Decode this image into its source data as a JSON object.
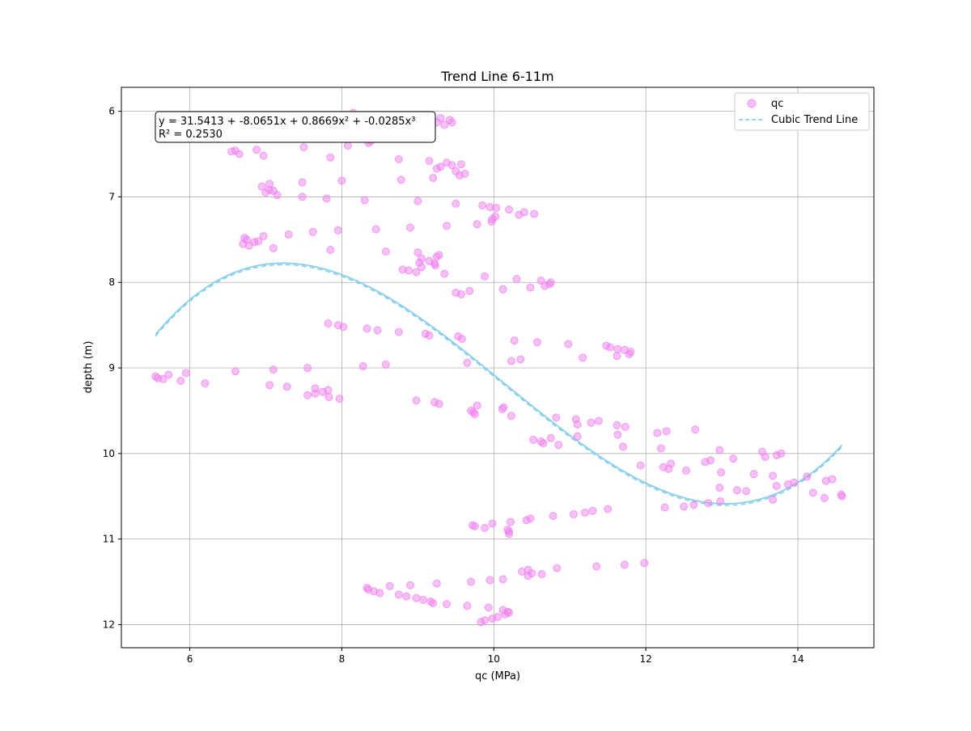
{
  "chart_data": {
    "type": "scatter",
    "title": "Trend Line 6-11m",
    "xlabel": "qc (MPa)",
    "ylabel": "depth (m)",
    "xlim": [
      5.1,
      15.0
    ],
    "ylim": [
      12.27,
      5.72
    ],
    "y_inverted": true,
    "grid": true,
    "legend_position": "top-right",
    "x_ticks": [
      6,
      8,
      10,
      12,
      14
    ],
    "y_ticks": [
      6,
      7,
      8,
      9,
      10,
      11,
      12
    ],
    "x_tick_labels": [
      "6",
      "8",
      "10",
      "12",
      "14"
    ],
    "y_tick_labels": [
      "6",
      "7",
      "8",
      "9",
      "10",
      "11",
      "12"
    ],
    "annotation": {
      "line1": "y = 31.5413 + -8.0651x + 0.8669x² + -0.0285x³",
      "line2": "R² = 0.2530"
    },
    "series": [
      {
        "name": "qc",
        "kind": "scatter",
        "color": "#ee82ee",
        "points": [
          [
            8.15,
            6.02
          ],
          [
            8.35,
            6.37
          ],
          [
            8.38,
            6.35
          ],
          [
            8.45,
            6.3
          ],
          [
            8.6,
            6.27
          ],
          [
            8.7,
            6.26
          ],
          [
            8.8,
            6.23
          ],
          [
            8.95,
            6.22
          ],
          [
            9.1,
            6.2
          ],
          [
            9.15,
            6.16
          ],
          [
            9.25,
            6.13
          ],
          [
            9.3,
            6.08
          ],
          [
            9.35,
            6.16
          ],
          [
            9.42,
            6.1
          ],
          [
            9.45,
            6.13
          ],
          [
            8.08,
            6.4
          ],
          [
            6.55,
            6.47
          ],
          [
            6.6,
            6.46
          ],
          [
            6.65,
            6.5
          ],
          [
            6.88,
            6.45
          ],
          [
            6.97,
            6.52
          ],
          [
            7.5,
            6.42
          ],
          [
            7.85,
            6.54
          ],
          [
            8.75,
            6.56
          ],
          [
            9.15,
            6.58
          ],
          [
            9.25,
            6.67
          ],
          [
            9.3,
            6.65
          ],
          [
            9.38,
            6.6
          ],
          [
            9.45,
            6.63
          ],
          [
            9.5,
            6.7
          ],
          [
            9.55,
            6.75
          ],
          [
            9.57,
            6.62
          ],
          [
            9.62,
            6.73
          ],
          [
            9.2,
            6.78
          ],
          [
            8.78,
            6.8
          ],
          [
            8.0,
            6.81
          ],
          [
            7.48,
            6.83
          ],
          [
            7.05,
            6.85
          ],
          [
            6.95,
            6.88
          ],
          [
            7.0,
            6.95
          ],
          [
            7.05,
            6.92
          ],
          [
            7.1,
            6.93
          ],
          [
            7.15,
            6.98
          ],
          [
            7.48,
            7.0
          ],
          [
            7.8,
            7.02
          ],
          [
            8.3,
            7.04
          ],
          [
            9.0,
            7.05
          ],
          [
            9.5,
            7.08
          ],
          [
            9.85,
            7.1
          ],
          [
            9.95,
            7.12
          ],
          [
            10.03,
            7.13
          ],
          [
            10.2,
            7.15
          ],
          [
            10.33,
            7.21
          ],
          [
            10.4,
            7.18
          ],
          [
            10.53,
            7.2
          ],
          [
            10.02,
            7.23
          ],
          [
            9.98,
            7.26
          ],
          [
            9.97,
            7.29
          ],
          [
            9.78,
            7.32
          ],
          [
            9.38,
            7.34
          ],
          [
            8.9,
            7.36
          ],
          [
            8.45,
            7.38
          ],
          [
            7.95,
            7.39
          ],
          [
            7.62,
            7.41
          ],
          [
            7.3,
            7.44
          ],
          [
            6.97,
            7.46
          ],
          [
            6.72,
            7.48
          ],
          [
            6.75,
            7.5
          ],
          [
            6.9,
            7.52
          ],
          [
            6.85,
            7.53
          ],
          [
            6.7,
            7.55
          ],
          [
            6.78,
            7.57
          ],
          [
            7.1,
            7.6
          ],
          [
            7.85,
            7.62
          ],
          [
            8.58,
            7.64
          ],
          [
            9.0,
            7.65
          ],
          [
            9.28,
            7.68
          ],
          [
            9.25,
            7.7
          ],
          [
            9.05,
            7.72
          ],
          [
            9.15,
            7.75
          ],
          [
            9.02,
            7.77
          ],
          [
            9.22,
            7.78
          ],
          [
            9.23,
            7.8
          ],
          [
            9.05,
            7.82
          ],
          [
            8.8,
            7.85
          ],
          [
            8.88,
            7.86
          ],
          [
            8.98,
            7.88
          ],
          [
            9.35,
            7.9
          ],
          [
            9.88,
            7.93
          ],
          [
            10.3,
            7.96
          ],
          [
            10.62,
            7.98
          ],
          [
            10.75,
            8.0
          ],
          [
            10.73,
            8.02
          ],
          [
            10.67,
            8.04
          ],
          [
            10.48,
            8.06
          ],
          [
            10.12,
            8.08
          ],
          [
            9.68,
            8.1
          ],
          [
            9.5,
            8.12
          ],
          [
            9.57,
            8.14
          ],
          [
            7.82,
            8.48
          ],
          [
            7.95,
            8.5
          ],
          [
            8.02,
            8.52
          ],
          [
            8.33,
            8.54
          ],
          [
            8.47,
            8.56
          ],
          [
            8.75,
            8.58
          ],
          [
            9.1,
            8.6
          ],
          [
            9.15,
            8.62
          ],
          [
            9.53,
            8.63
          ],
          [
            9.58,
            8.66
          ],
          [
            10.27,
            8.68
          ],
          [
            10.57,
            8.7
          ],
          [
            10.98,
            8.72
          ],
          [
            11.48,
            8.74
          ],
          [
            11.53,
            8.76
          ],
          [
            11.63,
            8.78
          ],
          [
            11.72,
            8.79
          ],
          [
            11.8,
            8.81
          ],
          [
            11.78,
            8.84
          ],
          [
            11.62,
            8.86
          ],
          [
            11.17,
            8.88
          ],
          [
            10.35,
            8.9
          ],
          [
            10.23,
            8.92
          ],
          [
            9.65,
            8.94
          ],
          [
            8.58,
            8.96
          ],
          [
            8.28,
            8.98
          ],
          [
            7.55,
            9.0
          ],
          [
            7.1,
            9.02
          ],
          [
            6.6,
            9.04
          ],
          [
            5.95,
            9.06
          ],
          [
            5.72,
            9.08
          ],
          [
            5.55,
            9.1
          ],
          [
            5.58,
            9.12
          ],
          [
            5.65,
            9.13
          ],
          [
            5.88,
            9.15
          ],
          [
            6.2,
            9.18
          ],
          [
            7.05,
            9.2
          ],
          [
            7.28,
            9.22
          ],
          [
            7.65,
            9.24
          ],
          [
            7.82,
            9.26
          ],
          [
            7.75,
            9.28
          ],
          [
            7.65,
            9.3
          ],
          [
            7.55,
            9.32
          ],
          [
            7.83,
            9.34
          ],
          [
            7.97,
            9.36
          ],
          [
            8.98,
            9.38
          ],
          [
            9.22,
            9.4
          ],
          [
            9.28,
            9.42
          ],
          [
            9.78,
            9.44
          ],
          [
            10.13,
            9.46
          ],
          [
            10.11,
            9.48
          ],
          [
            9.7,
            9.5
          ],
          [
            9.73,
            9.52
          ],
          [
            9.75,
            9.54
          ],
          [
            10.23,
            9.56
          ],
          [
            10.82,
            9.58
          ],
          [
            11.08,
            9.6
          ],
          [
            11.38,
            9.62
          ],
          [
            11.28,
            9.64
          ],
          [
            11.1,
            9.66
          ],
          [
            11.62,
            9.67
          ],
          [
            11.73,
            9.69
          ],
          [
            12.65,
            9.72
          ],
          [
            12.27,
            9.74
          ],
          [
            12.15,
            9.76
          ],
          [
            11.63,
            9.78
          ],
          [
            11.1,
            9.8
          ],
          [
            10.75,
            9.82
          ],
          [
            10.52,
            9.84
          ],
          [
            10.62,
            9.86
          ],
          [
            10.65,
            9.88
          ],
          [
            10.85,
            9.9
          ],
          [
            11.7,
            9.92
          ],
          [
            12.2,
            9.94
          ],
          [
            12.97,
            9.96
          ],
          [
            13.53,
            9.98
          ],
          [
            13.78,
            10.0
          ],
          [
            13.72,
            10.02
          ],
          [
            13.57,
            10.04
          ],
          [
            13.15,
            10.06
          ],
          [
            12.85,
            10.08
          ],
          [
            12.78,
            10.1
          ],
          [
            12.33,
            10.12
          ],
          [
            11.93,
            10.14
          ],
          [
            12.23,
            10.16
          ],
          [
            12.3,
            10.18
          ],
          [
            12.53,
            10.2
          ],
          [
            12.99,
            10.22
          ],
          [
            13.42,
            10.24
          ],
          [
            14.12,
            10.27
          ],
          [
            13.67,
            10.26
          ],
          [
            14.45,
            10.3
          ],
          [
            14.37,
            10.32
          ],
          [
            13.95,
            10.34
          ],
          [
            13.87,
            10.36
          ],
          [
            13.72,
            10.38
          ],
          [
            12.97,
            10.4
          ],
          [
            13.2,
            10.43
          ],
          [
            13.32,
            10.44
          ],
          [
            14.2,
            10.46
          ],
          [
            14.57,
            10.48
          ],
          [
            14.58,
            10.5
          ],
          [
            14.35,
            10.52
          ],
          [
            13.67,
            10.54
          ],
          [
            12.98,
            10.56
          ],
          [
            12.82,
            10.58
          ],
          [
            12.63,
            10.6
          ],
          [
            12.5,
            10.62
          ],
          [
            12.25,
            10.63
          ],
          [
            11.5,
            10.65
          ],
          [
            11.3,
            10.67
          ],
          [
            11.2,
            10.69
          ],
          [
            11.05,
            10.71
          ],
          [
            10.78,
            10.73
          ],
          [
            10.48,
            10.76
          ],
          [
            10.43,
            10.78
          ],
          [
            10.22,
            10.8
          ],
          [
            9.98,
            10.82
          ],
          [
            9.72,
            10.84
          ],
          [
            9.75,
            10.85
          ],
          [
            9.88,
            10.87
          ],
          [
            10.18,
            10.89
          ],
          [
            10.2,
            10.91
          ],
          [
            10.2,
            10.94
          ],
          [
            11.98,
            11.28
          ],
          [
            11.72,
            11.3
          ],
          [
            11.35,
            11.32
          ],
          [
            10.83,
            11.34
          ],
          [
            10.45,
            11.36
          ],
          [
            10.37,
            11.38
          ],
          [
            10.5,
            11.4
          ],
          [
            10.63,
            11.41
          ],
          [
            10.45,
            11.43
          ],
          [
            10.12,
            11.47
          ],
          [
            9.95,
            11.48
          ],
          [
            9.7,
            11.5
          ],
          [
            9.25,
            11.52
          ],
          [
            8.63,
            11.55
          ],
          [
            8.9,
            11.54
          ],
          [
            8.33,
            11.57
          ],
          [
            8.35,
            11.59
          ],
          [
            8.42,
            11.61
          ],
          [
            8.5,
            11.63
          ],
          [
            8.75,
            11.65
          ],
          [
            8.85,
            11.67
          ],
          [
            8.98,
            11.69
          ],
          [
            9.07,
            11.71
          ],
          [
            9.17,
            11.73
          ],
          [
            9.2,
            11.75
          ],
          [
            9.38,
            11.76
          ],
          [
            9.65,
            11.78
          ],
          [
            9.93,
            11.8
          ],
          [
            10.12,
            11.83
          ],
          [
            10.18,
            11.85
          ],
          [
            10.2,
            11.86
          ],
          [
            10.15,
            11.88
          ],
          [
            10.05,
            11.91
          ],
          [
            9.98,
            11.93
          ],
          [
            9.88,
            11.95
          ],
          [
            9.83,
            11.97
          ]
        ]
      },
      {
        "name": "Cubic Trend Line",
        "kind": "line",
        "color": "#87ceeb",
        "dash": "dashed",
        "coefficients": [
          31.5413,
          -8.0651,
          0.8669,
          -0.0285
        ],
        "x_range": [
          5.55,
          14.58
        ]
      }
    ]
  }
}
